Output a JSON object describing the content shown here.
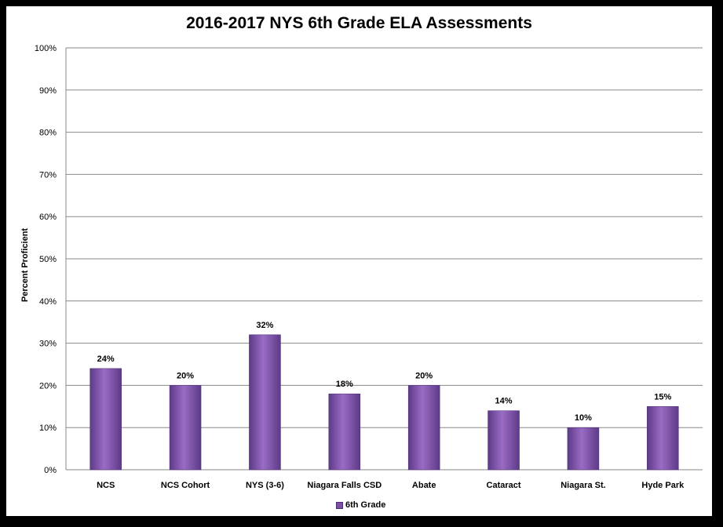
{
  "chart_data": {
    "type": "bar",
    "title": "2016-2017 NYS 6th Grade ELA Assessments",
    "xlabel": "",
    "ylabel": "Percent Proficient",
    "categories": [
      "NCS",
      "NCS Cohort",
      "NYS (3-6)",
      "Niagara Falls CSD",
      "Abate",
      "Cataract",
      "Niagara St.",
      "Hyde Park"
    ],
    "series": [
      {
        "name": "6th Grade",
        "values": [
          24,
          20,
          32,
          18,
          20,
          14,
          10,
          15
        ],
        "labels": [
          "24%",
          "20%",
          "32%",
          "18%",
          "20%",
          "14%",
          "10%",
          "15%"
        ]
      }
    ],
    "ylim": [
      0,
      100
    ],
    "yticks": [
      "0%",
      "10%",
      "20%",
      "30%",
      "40%",
      "50%",
      "60%",
      "70%",
      "80%",
      "90%",
      "100%"
    ],
    "grid": true,
    "legend_position": "bottom",
    "colors": {
      "bar": "#8a5cb5",
      "bar_dark": "#5e3a88",
      "grid": "#888888"
    }
  }
}
